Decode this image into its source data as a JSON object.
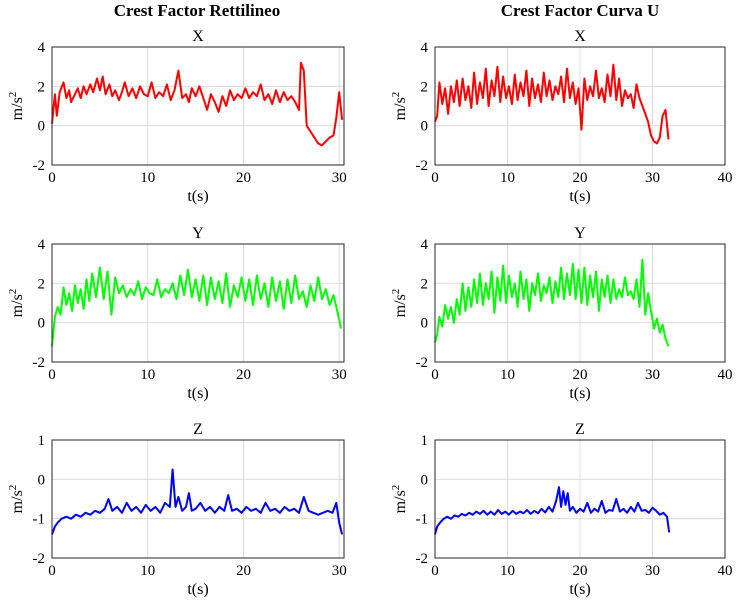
{
  "columns": [
    {
      "title": "Crest Factor Rettilineo"
    },
    {
      "title": "Crest Factor Curva U"
    }
  ],
  "chart_data": [
    {
      "type": "line",
      "column": 0,
      "row": 0,
      "title": "X",
      "xlabel": "t(s)",
      "ylabel": "m/s",
      "ylabel_sup": "2",
      "xlim": [
        0,
        30.5
      ],
      "ylim": [
        -2,
        4
      ],
      "xticks": [
        0,
        10,
        20,
        30
      ],
      "yticks": [
        -2,
        0,
        2,
        4
      ],
      "grid": true,
      "color": "#ff0000",
      "x": [
        0,
        0.3,
        0.5,
        0.8,
        1.2,
        1.5,
        1.8,
        2.0,
        2.3,
        2.7,
        3.0,
        3.3,
        3.6,
        4.0,
        4.3,
        4.7,
        5.0,
        5.3,
        5.6,
        6.0,
        6.3,
        6.6,
        7.0,
        7.3,
        7.6,
        8.0,
        8.4,
        8.8,
        9.2,
        9.6,
        10.0,
        10.4,
        10.8,
        11.2,
        11.6,
        12.0,
        12.4,
        12.8,
        13.2,
        13.6,
        14.0,
        14.3,
        14.6,
        15.0,
        15.4,
        15.8,
        16.2,
        16.6,
        17.0,
        17.4,
        17.8,
        18.2,
        18.6,
        19.0,
        19.4,
        19.8,
        20.2,
        20.6,
        21.0,
        21.4,
        21.8,
        22.2,
        22.6,
        23.0,
        23.4,
        23.8,
        24.2,
        24.6,
        25.0,
        25.4,
        25.8,
        26.0,
        26.3,
        26.6,
        27.0,
        27.4,
        27.8,
        28.2,
        28.6,
        29.0,
        29.4,
        29.7,
        30.0,
        30.3
      ],
      "y": [
        0.1,
        1.6,
        0.5,
        1.7,
        2.2,
        1.4,
        1.8,
        1.2,
        1.5,
        1.9,
        1.4,
        2.0,
        1.6,
        2.1,
        1.7,
        2.4,
        1.8,
        2.5,
        1.6,
        2.1,
        1.5,
        1.8,
        1.3,
        1.7,
        2.2,
        1.5,
        1.9,
        1.4,
        2.0,
        1.6,
        1.5,
        2.2,
        1.4,
        1.7,
        1.5,
        2.1,
        1.3,
        1.8,
        2.8,
        1.4,
        1.6,
        1.2,
        1.9,
        1.5,
        2.0,
        1.4,
        0.8,
        1.6,
        1.2,
        0.7,
        1.5,
        1.0,
        1.8,
        1.3,
        1.6,
        1.4,
        1.9,
        1.4,
        1.7,
        1.5,
        2.1,
        1.3,
        1.6,
        1.1,
        1.8,
        1.2,
        1.7,
        1.3,
        1.5,
        1.2,
        0.8,
        3.2,
        2.8,
        0.0,
        -0.3,
        -0.6,
        -0.9,
        -1.0,
        -0.8,
        -0.6,
        -0.5,
        0.4,
        1.7,
        0.3
      ]
    },
    {
      "type": "line",
      "column": 1,
      "row": 0,
      "title": "X",
      "xlabel": "t(s)",
      "ylabel": "m/s",
      "ylabel_sup": "2",
      "xlim": [
        0,
        40
      ],
      "ylim": [
        -2,
        4
      ],
      "xticks": [
        0,
        10,
        20,
        30,
        40
      ],
      "yticks": [
        -2,
        0,
        2,
        4
      ],
      "grid": true,
      "color": "#ff0000",
      "x": [
        0,
        0.3,
        0.6,
        1.0,
        1.4,
        1.8,
        2.2,
        2.6,
        3.0,
        3.4,
        3.8,
        4.2,
        4.6,
        5.0,
        5.4,
        5.8,
        6.2,
        6.6,
        7.0,
        7.4,
        7.8,
        8.2,
        8.6,
        9.0,
        9.4,
        9.8,
        10.2,
        10.6,
        11.0,
        11.4,
        11.8,
        12.2,
        12.6,
        13.0,
        13.4,
        13.8,
        14.2,
        14.6,
        15.0,
        15.4,
        15.8,
        16.2,
        16.6,
        17.0,
        17.4,
        17.8,
        18.2,
        18.6,
        19.0,
        19.4,
        19.8,
        20.2,
        20.6,
        21.0,
        21.4,
        21.8,
        22.2,
        22.6,
        23.0,
        23.4,
        23.8,
        24.2,
        24.6,
        25.0,
        25.4,
        25.8,
        26.2,
        26.6,
        27.0,
        27.4,
        27.8,
        28.2,
        28.6,
        29.0,
        29.4,
        29.8,
        30.2,
        30.6,
        31.0,
        31.4,
        31.8,
        32.2
      ],
      "y": [
        0.2,
        0.5,
        2.2,
        1.1,
        1.9,
        0.6,
        2.0,
        1.2,
        2.3,
        1.0,
        2.4,
        1.3,
        2.0,
        0.9,
        2.7,
        1.1,
        2.2,
        1.4,
        2.9,
        1.0,
        2.3,
        1.5,
        3.0,
        1.2,
        2.5,
        1.4,
        2.0,
        1.1,
        2.6,
        1.3,
        2.2,
        1.5,
        2.8,
        1.0,
        2.4,
        1.4,
        2.1,
        1.2,
        2.7,
        1.5,
        2.3,
        1.3,
        2.0,
        1.6,
        2.5,
        1.2,
        2.9,
        1.4,
        2.2,
        1.1,
        1.9,
        -0.2,
        2.4,
        1.3,
        2.0,
        1.5,
        2.8,
        1.4,
        1.9,
        1.2,
        2.6,
        1.5,
        3.1,
        1.3,
        2.4,
        1.0,
        1.8,
        1.4,
        1.6,
        0.9,
        2.1,
        1.4,
        1.0,
        0.6,
        0.2,
        -0.5,
        -0.8,
        -0.9,
        -0.6,
        0.5,
        0.8,
        -0.7
      ]
    },
    {
      "type": "line",
      "column": 0,
      "row": 1,
      "title": "Y",
      "xlabel": "t(s)",
      "ylabel": "m/s",
      "ylabel_sup": "2",
      "xlim": [
        0,
        30.5
      ],
      "ylim": [
        -2,
        4
      ],
      "xticks": [
        0,
        10,
        20,
        30
      ],
      "yticks": [
        -2,
        0,
        2,
        4
      ],
      "grid": true,
      "color": "#00ff00",
      "x": [
        0,
        0.3,
        0.6,
        0.9,
        1.2,
        1.5,
        1.8,
        2.1,
        2.4,
        2.7,
        3.0,
        3.3,
        3.6,
        3.9,
        4.2,
        4.6,
        5.0,
        5.4,
        5.8,
        6.2,
        6.6,
        7.0,
        7.4,
        7.8,
        8.2,
        8.6,
        9.0,
        9.4,
        9.8,
        10.2,
        10.6,
        11.0,
        11.4,
        11.8,
        12.2,
        12.6,
        13.0,
        13.4,
        13.8,
        14.2,
        14.6,
        15.0,
        15.4,
        15.8,
        16.2,
        16.6,
        17.0,
        17.4,
        17.8,
        18.2,
        18.6,
        19.0,
        19.4,
        19.8,
        20.2,
        20.6,
        21.0,
        21.4,
        21.8,
        22.2,
        22.6,
        23.0,
        23.4,
        23.8,
        24.2,
        24.6,
        25.0,
        25.4,
        25.8,
        26.2,
        26.6,
        27.0,
        27.4,
        27.8,
        28.2,
        28.6,
        29.0,
        29.4,
        29.8,
        30.2
      ],
      "y": [
        -1.2,
        0.3,
        0.8,
        0.4,
        1.8,
        0.9,
        1.5,
        0.6,
        1.9,
        1.0,
        1.7,
        0.7,
        2.2,
        1.1,
        2.5,
        1.3,
        2.8,
        1.2,
        2.6,
        0.4,
        2.3,
        1.5,
        1.9,
        1.3,
        1.7,
        1.4,
        2.1,
        1.2,
        1.8,
        1.5,
        1.4,
        2.2,
        1.3,
        1.7,
        1.5,
        2.0,
        1.2,
        2.4,
        1.4,
        2.7,
        1.3,
        2.2,
        1.1,
        2.4,
        0.9,
        2.3,
        1.2,
        2.1,
        1.0,
        2.5,
        0.8,
        1.9,
        1.3,
        2.3,
        1.1,
        2.2,
        0.9,
        2.4,
        1.2,
        2.0,
        0.8,
        2.3,
        1.1,
        2.1,
        0.7,
        2.2,
        1.0,
        2.4,
        1.2,
        1.6,
        0.8,
        1.9,
        1.1,
        2.3,
        1.2,
        1.7,
        0.9,
        1.4,
        0.6,
        -0.3
      ]
    },
    {
      "type": "line",
      "column": 1,
      "row": 1,
      "title": "Y",
      "xlabel": "t(s)",
      "ylabel": "m/s",
      "ylabel_sup": "2",
      "xlim": [
        0,
        40
      ],
      "ylim": [
        -2,
        4
      ],
      "xticks": [
        0,
        10,
        20,
        30,
        40
      ],
      "yticks": [
        -2,
        0,
        2,
        4
      ],
      "grid": true,
      "color": "#00ff00",
      "x": [
        0,
        0.3,
        0.6,
        1.0,
        1.4,
        1.8,
        2.2,
        2.6,
        3.0,
        3.4,
        3.8,
        4.2,
        4.6,
        5.0,
        5.4,
        5.8,
        6.2,
        6.6,
        7.0,
        7.4,
        7.8,
        8.2,
        8.6,
        9.0,
        9.4,
        9.8,
        10.2,
        10.6,
        11.0,
        11.4,
        11.8,
        12.2,
        12.6,
        13.0,
        13.4,
        13.8,
        14.2,
        14.6,
        15.0,
        15.4,
        15.8,
        16.2,
        16.6,
        17.0,
        17.4,
        17.8,
        18.2,
        18.6,
        19.0,
        19.4,
        19.8,
        20.2,
        20.6,
        21.0,
        21.4,
        21.8,
        22.2,
        22.6,
        23.0,
        23.4,
        23.8,
        24.2,
        24.6,
        25.0,
        25.4,
        25.8,
        26.2,
        26.6,
        27.0,
        27.4,
        27.8,
        28.2,
        28.6,
        29.0,
        29.4,
        29.8,
        30.2,
        30.6,
        31.0,
        31.4,
        31.8,
        32.2
      ],
      "y": [
        -1.0,
        -0.6,
        0.3,
        -0.2,
        0.9,
        0.2,
        0.8,
        0.0,
        1.2,
        0.4,
        2.0,
        0.6,
        1.8,
        0.8,
        2.2,
        1.0,
        2.5,
        0.9,
        2.0,
        1.2,
        2.6,
        0.5,
        2.3,
        1.1,
        2.9,
        1.0,
        2.4,
        1.3,
        2.0,
        0.8,
        2.6,
        1.2,
        2.2,
        0.6,
        2.0,
        1.4,
        2.5,
        1.1,
        1.9,
        1.5,
        2.3,
        1.0,
        2.1,
        1.3,
        2.8,
        1.2,
        2.5,
        1.4,
        3.0,
        1.2,
        2.7,
        1.0,
        2.8,
        0.9,
        2.4,
        1.3,
        2.6,
        0.6,
        2.2,
        1.3,
        2.4,
        1.0,
        2.2,
        1.2,
        1.7,
        1.3,
        2.3,
        1.4,
        1.6,
        1.2,
        2.2,
        0.8,
        3.2,
        0.4,
        1.5,
        0.6,
        -0.3,
        0.2,
        -0.5,
        -0.1,
        -0.8,
        -1.2
      ]
    },
    {
      "type": "line",
      "column": 0,
      "row": 2,
      "title": "Z",
      "xlabel": "t(s)",
      "ylabel": "m/s",
      "ylabel_sup": "2",
      "xlim": [
        0,
        30.5
      ],
      "ylim": [
        -2,
        1
      ],
      "xticks": [
        0,
        10,
        20,
        30
      ],
      "yticks": [
        -2,
        -1,
        0,
        1
      ],
      "grid": true,
      "color": "#0000ff",
      "x": [
        0,
        0.3,
        0.6,
        1.0,
        1.5,
        2.0,
        2.5,
        3.0,
        3.5,
        4.0,
        4.5,
        5.0,
        5.5,
        5.9,
        6.3,
        6.8,
        7.3,
        7.8,
        8.3,
        8.8,
        9.3,
        9.8,
        10.3,
        10.8,
        11.3,
        11.8,
        12.3,
        12.6,
        12.9,
        13.2,
        13.6,
        14.0,
        14.3,
        14.6,
        15.0,
        15.5,
        16.0,
        16.5,
        17.0,
        17.5,
        18.0,
        18.4,
        18.8,
        19.3,
        19.8,
        20.3,
        20.8,
        21.3,
        21.8,
        22.3,
        22.8,
        23.3,
        23.8,
        24.3,
        24.8,
        25.3,
        25.8,
        26.3,
        26.8,
        27.3,
        27.8,
        28.3,
        28.8,
        29.3,
        29.7,
        30.0,
        30.3
      ],
      "y": [
        -1.4,
        -1.2,
        -1.1,
        -1.0,
        -0.95,
        -1.0,
        -0.9,
        -0.95,
        -0.85,
        -0.9,
        -0.8,
        -0.85,
        -0.75,
        -0.5,
        -0.8,
        -0.7,
        -0.85,
        -0.6,
        -0.8,
        -0.7,
        -0.85,
        -0.65,
        -0.8,
        -0.7,
        -0.85,
        -0.6,
        -0.7,
        0.25,
        -0.7,
        -0.45,
        -0.8,
        -0.7,
        -0.35,
        -0.8,
        -0.75,
        -0.6,
        -0.8,
        -0.7,
        -0.85,
        -0.7,
        -0.8,
        -0.4,
        -0.8,
        -0.75,
        -0.85,
        -0.7,
        -0.8,
        -0.75,
        -0.85,
        -0.6,
        -0.8,
        -0.75,
        -0.85,
        -0.7,
        -0.8,
        -0.75,
        -0.85,
        -0.45,
        -0.8,
        -0.85,
        -0.9,
        -0.85,
        -0.8,
        -0.85,
        -0.6,
        -1.1,
        -1.4
      ]
    },
    {
      "type": "line",
      "column": 1,
      "row": 2,
      "title": "Z",
      "xlabel": "t(s)",
      "ylabel": "m/s",
      "ylabel_sup": "2",
      "xlim": [
        0,
        40
      ],
      "ylim": [
        -2,
        1
      ],
      "xticks": [
        0,
        10,
        20,
        30,
        40
      ],
      "yticks": [
        -2,
        -1,
        0,
        1
      ],
      "grid": true,
      "color": "#0000ff",
      "x": [
        0,
        0.3,
        0.7,
        1.2,
        1.7,
        2.2,
        2.7,
        3.2,
        3.7,
        4.2,
        4.7,
        5.2,
        5.7,
        6.2,
        6.7,
        7.2,
        7.7,
        8.2,
        8.7,
        9.2,
        9.7,
        10.2,
        10.7,
        11.2,
        11.7,
        12.2,
        12.7,
        13.2,
        13.7,
        14.2,
        14.7,
        15.2,
        15.7,
        16.2,
        16.7,
        17.1,
        17.4,
        17.7,
        18.0,
        18.3,
        18.6,
        19.0,
        19.5,
        20.0,
        20.5,
        21.0,
        21.5,
        22.0,
        22.5,
        23.0,
        23.5,
        24.0,
        24.5,
        25.0,
        25.5,
        26.0,
        26.5,
        27.0,
        27.5,
        28.0,
        28.5,
        29.0,
        29.5,
        30.0,
        30.5,
        31.0,
        31.5,
        32.0,
        32.3
      ],
      "y": [
        -1.4,
        -1.2,
        -1.1,
        -1.0,
        -0.95,
        -1.0,
        -0.92,
        -0.95,
        -0.88,
        -0.92,
        -0.85,
        -0.9,
        -0.82,
        -0.88,
        -0.8,
        -0.9,
        -0.82,
        -0.9,
        -0.78,
        -0.88,
        -0.82,
        -0.9,
        -0.8,
        -0.88,
        -0.82,
        -0.86,
        -0.78,
        -0.88,
        -0.8,
        -0.86,
        -0.75,
        -0.84,
        -0.7,
        -0.82,
        -0.55,
        -0.2,
        -0.7,
        -0.3,
        -0.65,
        -0.35,
        -0.8,
        -0.7,
        -0.85,
        -0.75,
        -0.82,
        -0.6,
        -0.85,
        -0.75,
        -0.82,
        -0.55,
        -0.85,
        -0.78,
        -0.8,
        -0.5,
        -0.82,
        -0.75,
        -0.85,
        -0.7,
        -0.82,
        -0.6,
        -0.8,
        -0.78,
        -0.85,
        -0.72,
        -0.8,
        -0.9,
        -0.85,
        -0.95,
        -1.35
      ]
    }
  ]
}
